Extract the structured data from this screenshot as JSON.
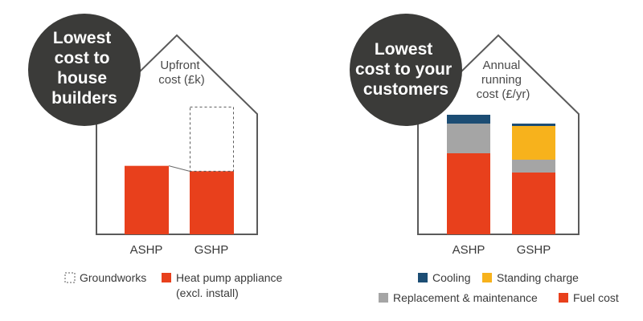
{
  "colors": {
    "outline": "#5a5a5a",
    "badge": "#3b3b39",
    "fuel": "#e8401c",
    "replacement": "#a5a5a5",
    "standing": "#f7b21c",
    "cooling": "#1c4d74",
    "appliance": "#e8401c"
  },
  "left_panel": {
    "badge_lines": [
      "Lowest",
      "cost to",
      "house",
      "builders"
    ],
    "axis_title_lines": [
      "Upfront",
      "cost (£k)"
    ],
    "legend": [
      {
        "key": "groundworks",
        "label": "Groundworks",
        "style": "dashed",
        "icon": "dashed-square-swatch"
      },
      {
        "key": "appliance",
        "label": "Heat pump appliance",
        "sublabel": "(excl. install)",
        "style": "solid",
        "color": "#e8401c"
      }
    ]
  },
  "right_panel": {
    "badge_lines": [
      "Lowest",
      "cost to your",
      "customers"
    ],
    "axis_title_lines": [
      "Annual",
      "running",
      "cost (£/yr)"
    ],
    "legend": [
      {
        "key": "cooling",
        "label": "Cooling",
        "color": "#1c4d74"
      },
      {
        "key": "standing",
        "label": "Standing charge",
        "color": "#f7b21c"
      },
      {
        "key": "replacement",
        "label": "Replacement & maintenance",
        "color": "#a5a5a5"
      },
      {
        "key": "fuel",
        "label": "Fuel cost",
        "color": "#e8401c"
      }
    ]
  },
  "chart_data": [
    {
      "type": "bar",
      "title": "Upfront cost (£k)",
      "categories": [
        "ASHP",
        "GSHP"
      ],
      "ylim": [
        0,
        12
      ],
      "series": [
        {
          "name": "Heat pump appliance",
          "key": "appliance",
          "values": [
            6.4,
            5.9
          ],
          "style": "solid"
        },
        {
          "name": "Groundworks",
          "key": "groundworks",
          "values": [
            0,
            6.0
          ],
          "style": "dashed"
        }
      ]
    },
    {
      "type": "bar",
      "stacked": true,
      "title": "Annual running cost (£/yr)",
      "categories": [
        "ASHP",
        "GSHP"
      ],
      "ylim": [
        0,
        16
      ],
      "series": [
        {
          "name": "Fuel cost",
          "key": "fuel",
          "values": [
            10.1,
            7.7
          ]
        },
        {
          "name": "Replacement & maintenance",
          "key": "replacement",
          "values": [
            3.7,
            1.6
          ]
        },
        {
          "name": "Standing charge",
          "key": "standing",
          "values": [
            0,
            4.2
          ]
        },
        {
          "name": "Cooling",
          "key": "cooling",
          "values": [
            1.1,
            0.3
          ]
        }
      ]
    }
  ]
}
